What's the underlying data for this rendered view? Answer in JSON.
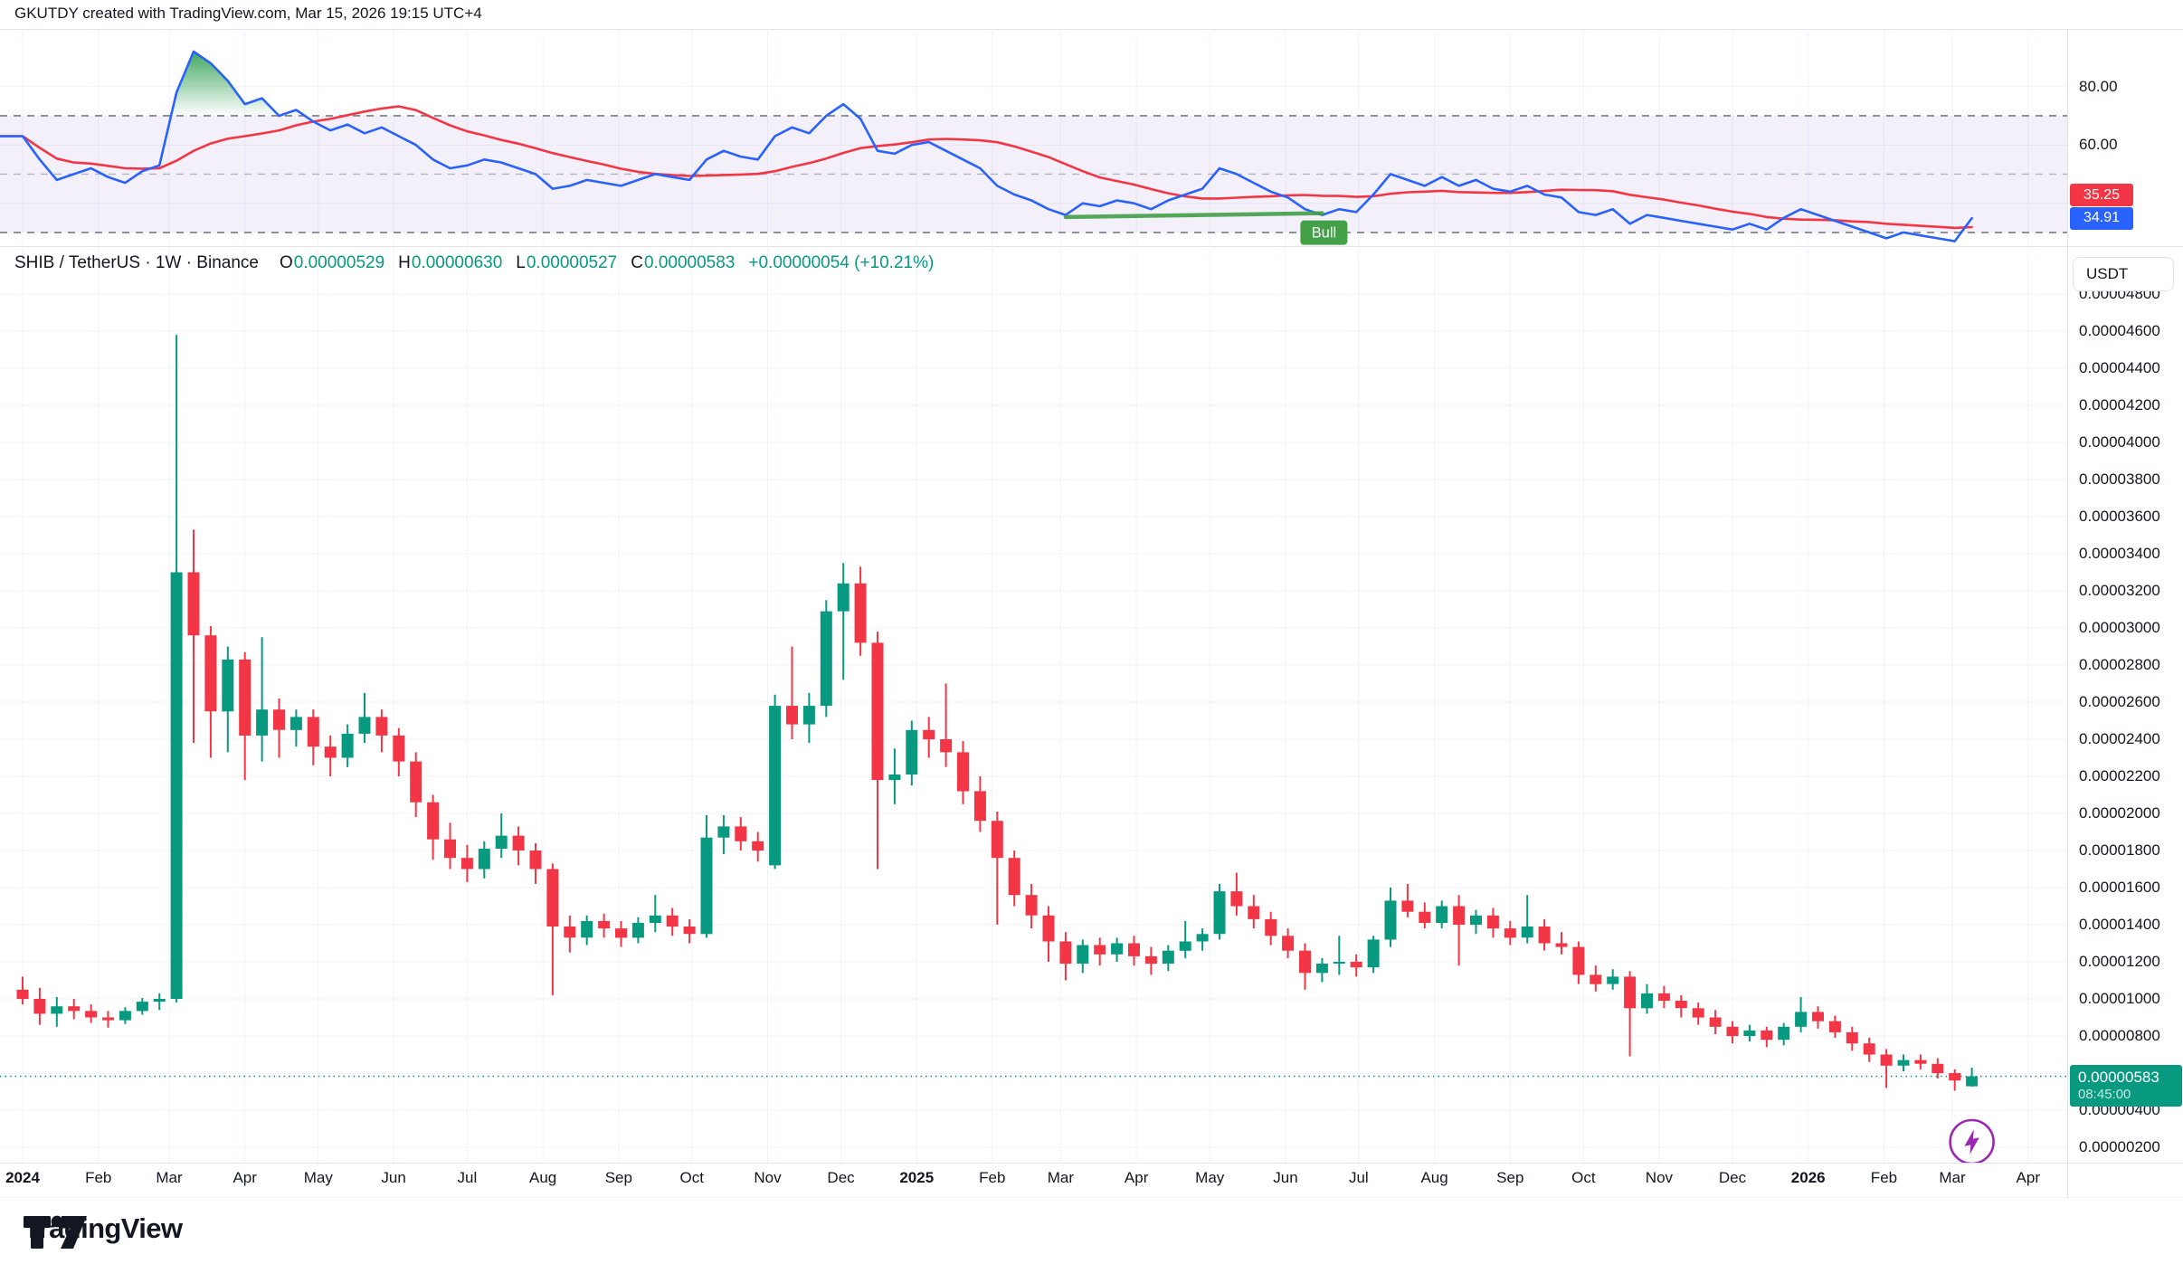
{
  "header": {
    "title": "GKUTDY created with TradingView.com, Mar 15, 2026 19:15 UTC+4"
  },
  "symbol_bar": {
    "title": "SHIB / TetherUS · 1W · Binance",
    "ohlc": [
      {
        "label": "O",
        "value": "0.00000529"
      },
      {
        "label": "H",
        "value": "0.00000630"
      },
      {
        "label": "L",
        "value": "0.00000527"
      },
      {
        "label": "C",
        "value": "0.00000583"
      }
    ],
    "change": "+0.00000054 (+10.21%)"
  },
  "colors": {
    "up": "#089981",
    "down": "#f23645",
    "rsi_line": "#2962ff",
    "rsi_ma": "#f23645",
    "bull": "#43a047",
    "band_fill": "rgba(126,87,194,0.09)",
    "grid": "#f0f3fa",
    "axis_text": "#131722",
    "separator": "#e0e3eb",
    "dashed_outer": "#787b86",
    "dashed_mid": "#b2b5be",
    "lightning": "#9c27b0",
    "fill_green_top": "#2e9e4f"
  },
  "rsi_panel": {
    "scale_labels": [
      {
        "text": "80.00",
        "value": 80
      },
      {
        "text": "60.00",
        "value": 60
      }
    ],
    "badges": [
      {
        "text": "35.25",
        "color": "#f23645"
      },
      {
        "text": "34.91",
        "color": "#2962ff"
      }
    ],
    "levels": {
      "upper": 70,
      "middle": 50,
      "lower": 30
    },
    "divergence": {
      "label": "Bull",
      "from_week": 61,
      "from_value": 35.3,
      "to_week": 76,
      "to_value": 36.6
    }
  },
  "price_axis": {
    "currency_button": "USDT",
    "scale": {
      "min": 200,
      "max": 4800,
      "step": 200
    },
    "last_badge": {
      "price": "0.00000583",
      "countdown": "08:45:00"
    }
  },
  "time_axis": {
    "labels": [
      {
        "text": "2024",
        "week": 0,
        "bold": true
      },
      {
        "text": "Feb",
        "week": 4.43
      },
      {
        "text": "Mar",
        "week": 8.57
      },
      {
        "text": "Apr",
        "week": 13
      },
      {
        "text": "May",
        "week": 17.29
      },
      {
        "text": "Jun",
        "week": 21.7
      },
      {
        "text": "Jul",
        "week": 26
      },
      {
        "text": "Aug",
        "week": 30.43
      },
      {
        "text": "Sep",
        "week": 34.86
      },
      {
        "text": "Oct",
        "week": 39.14
      },
      {
        "text": "Nov",
        "week": 43.57
      },
      {
        "text": "Dec",
        "week": 47.86
      },
      {
        "text": "2025",
        "week": 52.29,
        "bold": true
      },
      {
        "text": "Feb",
        "week": 56.71
      },
      {
        "text": "Mar",
        "week": 60.71
      },
      {
        "text": "Apr",
        "week": 65.14
      },
      {
        "text": "May",
        "week": 69.43
      },
      {
        "text": "Jun",
        "week": 73.86
      },
      {
        "text": "Jul",
        "week": 78.14
      },
      {
        "text": "Aug",
        "week": 82.57
      },
      {
        "text": "Sep",
        "week": 87
      },
      {
        "text": "Oct",
        "week": 91.29
      },
      {
        "text": "Nov",
        "week": 95.71
      },
      {
        "text": "Dec",
        "week": 100
      },
      {
        "text": "2026",
        "week": 104.43,
        "bold": true
      },
      {
        "text": "Feb",
        "week": 108.86
      },
      {
        "text": "Mar",
        "week": 112.86
      },
      {
        "text": "Apr",
        "week": 117.29
      }
    ]
  },
  "footer": {
    "brand": "TradingView"
  },
  "chart_data": {
    "type": "candlestick",
    "title": "SHIB / TetherUS · 1W · Binance",
    "interval": "1W",
    "price_unit": "1e-8 USDT",
    "ylim_1e8": [
      117,
      5059
    ],
    "last_close_1e8": 583,
    "grid": true,
    "candles_1e8": [
      [
        1050,
        1120,
        970,
        1000
      ],
      [
        1000,
        1060,
        860,
        920
      ],
      [
        920,
        1010,
        850,
        960
      ],
      [
        960,
        1000,
        890,
        935
      ],
      [
        935,
        970,
        870,
        900
      ],
      [
        900,
        935,
        845,
        885
      ],
      [
        885,
        955,
        865,
        935
      ],
      [
        935,
        1005,
        915,
        985
      ],
      [
        985,
        1030,
        940,
        1000
      ],
      [
        1000,
        4580,
        980,
        3300
      ],
      [
        3300,
        3530,
        2380,
        2960
      ],
      [
        2960,
        3010,
        2300,
        2550
      ],
      [
        2550,
        2900,
        2330,
        2830
      ],
      [
        2830,
        2870,
        2180,
        2420
      ],
      [
        2420,
        2950,
        2280,
        2560
      ],
      [
        2560,
        2620,
        2300,
        2450
      ],
      [
        2450,
        2560,
        2360,
        2520
      ],
      [
        2520,
        2560,
        2260,
        2360
      ],
      [
        2360,
        2420,
        2200,
        2300
      ],
      [
        2300,
        2480,
        2250,
        2430
      ],
      [
        2430,
        2650,
        2380,
        2520
      ],
      [
        2520,
        2560,
        2330,
        2420
      ],
      [
        2420,
        2460,
        2200,
        2280
      ],
      [
        2280,
        2330,
        1980,
        2060
      ],
      [
        2060,
        2100,
        1750,
        1860
      ],
      [
        1860,
        1950,
        1700,
        1760
      ],
      [
        1760,
        1830,
        1630,
        1700
      ],
      [
        1700,
        1850,
        1650,
        1810
      ],
      [
        1810,
        2000,
        1760,
        1880
      ],
      [
        1880,
        1930,
        1720,
        1800
      ],
      [
        1800,
        1840,
        1620,
        1700
      ],
      [
        1700,
        1730,
        1020,
        1390
      ],
      [
        1390,
        1450,
        1250,
        1330
      ],
      [
        1330,
        1450,
        1290,
        1420
      ],
      [
        1420,
        1460,
        1330,
        1380
      ],
      [
        1380,
        1420,
        1280,
        1330
      ],
      [
        1330,
        1440,
        1300,
        1410
      ],
      [
        1410,
        1560,
        1360,
        1450
      ],
      [
        1450,
        1490,
        1340,
        1390
      ],
      [
        1390,
        1430,
        1300,
        1350
      ],
      [
        1350,
        1990,
        1330,
        1870
      ],
      [
        1870,
        1990,
        1780,
        1930
      ],
      [
        1930,
        1980,
        1800,
        1850
      ],
      [
        1850,
        1900,
        1740,
        1800
      ],
      [
        1720,
        2640,
        1700,
        2580
      ],
      [
        2580,
        2900,
        2400,
        2480
      ],
      [
        2480,
        2650,
        2380,
        2580
      ],
      [
        2580,
        3150,
        2520,
        3090
      ],
      [
        3090,
        3350,
        2720,
        3240
      ],
      [
        3240,
        3330,
        2850,
        2920
      ],
      [
        2920,
        2980,
        1700,
        2180
      ],
      [
        2180,
        2350,
        2050,
        2210
      ],
      [
        2210,
        2500,
        2150,
        2450
      ],
      [
        2450,
        2520,
        2300,
        2400
      ],
      [
        2400,
        2700,
        2250,
        2330
      ],
      [
        2330,
        2390,
        2050,
        2120
      ],
      [
        2120,
        2200,
        1900,
        1960
      ],
      [
        1960,
        2010,
        1400,
        1760
      ],
      [
        1760,
        1800,
        1500,
        1560
      ],
      [
        1560,
        1620,
        1380,
        1450
      ],
      [
        1450,
        1500,
        1200,
        1310
      ],
      [
        1310,
        1360,
        1100,
        1190
      ],
      [
        1190,
        1320,
        1140,
        1290
      ],
      [
        1290,
        1330,
        1180,
        1240
      ],
      [
        1240,
        1330,
        1200,
        1300
      ],
      [
        1300,
        1340,
        1180,
        1230
      ],
      [
        1230,
        1280,
        1130,
        1190
      ],
      [
        1190,
        1290,
        1150,
        1260
      ],
      [
        1260,
        1420,
        1220,
        1310
      ],
      [
        1310,
        1380,
        1260,
        1350
      ],
      [
        1350,
        1620,
        1320,
        1580
      ],
      [
        1580,
        1680,
        1450,
        1500
      ],
      [
        1500,
        1560,
        1380,
        1430
      ],
      [
        1430,
        1470,
        1290,
        1340
      ],
      [
        1340,
        1380,
        1220,
        1260
      ],
      [
        1260,
        1300,
        1050,
        1140
      ],
      [
        1140,
        1220,
        1090,
        1190
      ],
      [
        1190,
        1340,
        1130,
        1200
      ],
      [
        1200,
        1240,
        1120,
        1170
      ],
      [
        1170,
        1340,
        1140,
        1320
      ],
      [
        1320,
        1600,
        1280,
        1530
      ],
      [
        1530,
        1620,
        1440,
        1470
      ],
      [
        1470,
        1520,
        1380,
        1410
      ],
      [
        1410,
        1530,
        1380,
        1500
      ],
      [
        1500,
        1560,
        1180,
        1400
      ],
      [
        1400,
        1480,
        1350,
        1450
      ],
      [
        1450,
        1490,
        1330,
        1380
      ],
      [
        1380,
        1420,
        1290,
        1330
      ],
      [
        1330,
        1560,
        1300,
        1390
      ],
      [
        1390,
        1430,
        1260,
        1300
      ],
      [
        1300,
        1360,
        1240,
        1280
      ],
      [
        1280,
        1310,
        1080,
        1130
      ],
      [
        1130,
        1180,
        1040,
        1080
      ],
      [
        1080,
        1160,
        1050,
        1120
      ],
      [
        1120,
        1150,
        690,
        950
      ],
      [
        950,
        1080,
        920,
        1030
      ],
      [
        1030,
        1070,
        950,
        990
      ],
      [
        990,
        1020,
        900,
        950
      ],
      [
        950,
        980,
        860,
        900
      ],
      [
        900,
        940,
        810,
        850
      ],
      [
        850,
        880,
        760,
        800
      ],
      [
        800,
        860,
        770,
        830
      ],
      [
        830,
        850,
        740,
        780
      ],
      [
        780,
        870,
        750,
        850
      ],
      [
        850,
        1010,
        820,
        930
      ],
      [
        930,
        960,
        840,
        880
      ],
      [
        880,
        910,
        790,
        820
      ],
      [
        820,
        850,
        720,
        760
      ],
      [
        760,
        790,
        660,
        700
      ],
      [
        700,
        730,
        520,
        640
      ],
      [
        640,
        700,
        610,
        670
      ],
      [
        670,
        700,
        620,
        650
      ],
      [
        650,
        680,
        570,
        600
      ],
      [
        600,
        620,
        505,
        560
      ],
      [
        529,
        630,
        527,
        583
      ]
    ],
    "rsi": [
      63,
      55,
      48,
      50,
      52,
      49,
      47,
      51,
      53,
      78,
      92,
      88,
      82,
      74,
      76,
      70,
      72,
      68,
      65,
      67,
      64,
      66,
      63,
      60,
      55,
      52,
      53,
      55,
      54,
      52,
      50,
      45,
      46,
      48,
      47,
      46,
      48,
      50,
      49,
      48,
      55,
      58,
      56,
      55,
      63,
      66,
      64,
      70,
      74,
      69,
      58,
      57,
      60,
      61,
      58,
      55,
      52,
      46,
      43,
      41,
      38,
      36,
      40,
      39,
      41,
      40,
      38,
      41,
      43,
      45,
      52,
      50,
      47,
      44,
      42,
      38,
      36,
      38,
      37,
      43,
      50,
      48,
      46,
      49,
      46,
      48,
      45,
      44,
      46,
      43,
      42,
      37,
      36,
      38,
      33,
      36,
      35,
      34,
      33,
      32,
      31,
      33,
      31,
      35,
      38,
      36,
      34,
      32,
      30,
      28,
      30,
      29,
      28,
      27,
      34.91
    ],
    "rsi_ma_period": 14
  }
}
